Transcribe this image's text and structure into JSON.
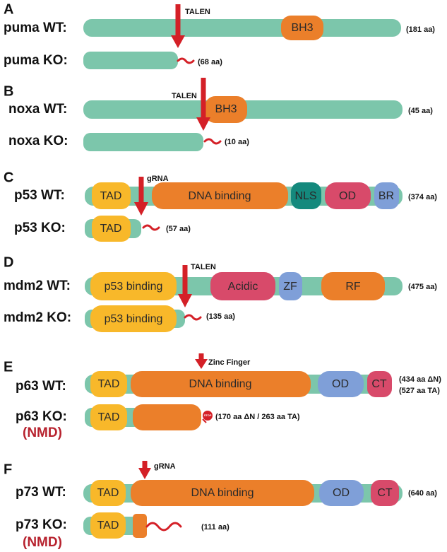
{
  "panels": [
    {
      "letter": "A",
      "tool": "TALEN",
      "wt": {
        "label": "puma WT:",
        "length": "(181 aa)",
        "domains": [
          "BH3"
        ]
      },
      "ko": {
        "label": "puma KO:",
        "length": "(68 aa)"
      }
    },
    {
      "letter": "B",
      "tool": "TALEN",
      "wt": {
        "label": "noxa WT:",
        "length": "(45 aa)",
        "domains": [
          "BH3"
        ]
      },
      "ko": {
        "label": "noxa KO:",
        "length": "(10 aa)"
      }
    },
    {
      "letter": "C",
      "tool": "gRNA",
      "wt": {
        "label": "p53 WT:",
        "length": "(374 aa)",
        "domains": [
          "TAD",
          "DNA binding",
          "NLS",
          "OD",
          "BR"
        ]
      },
      "ko": {
        "label": "p53 KO:",
        "length": "(57 aa)",
        "domains": [
          "TAD"
        ]
      }
    },
    {
      "letter": "D",
      "tool": "TALEN",
      "wt": {
        "label": "mdm2 WT:",
        "length": "(475 aa)",
        "domains": [
          "p53 binding",
          "Acidic",
          "ZF",
          "RF"
        ]
      },
      "ko": {
        "label": "mdm2 KO:",
        "length": "(135 aa)",
        "domains": [
          "p53 binding"
        ]
      }
    },
    {
      "letter": "E",
      "tool": "Zinc Finger",
      "wt": {
        "label": "p63 WT:",
        "length": "(434 aa ΔN)",
        "length_2": "(527 aa TA)",
        "domains": [
          "TAD",
          "DNA binding",
          "OD",
          "CT"
        ]
      },
      "ko": {
        "label": "p63 KO:",
        "note": "(NMD)",
        "length": "(170 aa ΔN / 263 aa TA)",
        "domains": [
          "TAD"
        ],
        "stop": "STOP"
      }
    },
    {
      "letter": "F",
      "tool": "gRNA",
      "wt": {
        "label": "p73 WT:",
        "length": "(640 aa)",
        "domains": [
          "TAD",
          "DNA binding",
          "OD",
          "CT"
        ]
      },
      "ko": {
        "label": "p73 KO:",
        "note": "(NMD)",
        "length": "(111 aa)",
        "domains": [
          "TAD"
        ]
      }
    }
  ]
}
